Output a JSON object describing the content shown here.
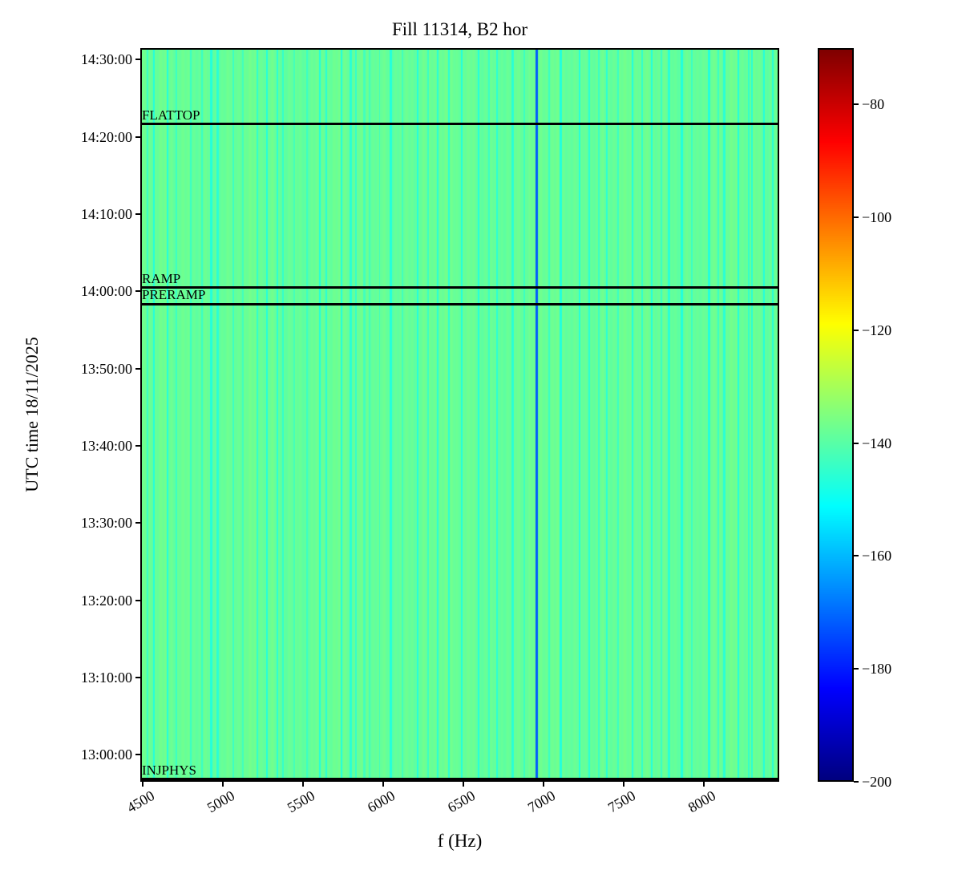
{
  "chart_data": {
    "type": "heatmap",
    "title": "Fill 11314, B2 hor",
    "xlabel": "f (Hz)",
    "ylabel": "UTC time 18/11/2025",
    "colormap": "jet",
    "x_range_hz": [
      4485,
      8470
    ],
    "x_ticks_hz": [
      4500,
      5000,
      5500,
      6000,
      6500,
      7000,
      7500,
      8000
    ],
    "y_ticks": [
      "14:30:00",
      "14:20:00",
      "14:10:00",
      "14:00:00",
      "13:50:00",
      "13:40:00",
      "13:30:00",
      "13:20:00",
      "13:10:00",
      "13:00:00"
    ],
    "time_top": "14:31:30",
    "time_bottom": "12:56:30",
    "value_range_db": [
      -200,
      -70
    ],
    "colorbar_ticks_db": [
      -80,
      -100,
      -120,
      -140,
      -160,
      -180,
      -200
    ],
    "baseline_db": -138,
    "noise_db": 1.2,
    "stripes": {
      "format": "[f_hz, db, width_hz]",
      "values": [
        [
          4520,
          -144,
          10
        ],
        [
          4560,
          -147,
          12
        ],
        [
          4645,
          -147,
          12
        ],
        [
          4700,
          -144,
          10
        ],
        [
          4790,
          -144,
          10
        ],
        [
          4860,
          -144,
          10
        ],
        [
          4920,
          -147,
          12
        ],
        [
          4960,
          -146,
          12
        ],
        [
          5060,
          -144,
          10
        ],
        [
          5120,
          -143,
          10
        ],
        [
          5210,
          -145,
          10
        ],
        [
          5270,
          -147,
          12
        ],
        [
          5335,
          -146,
          12
        ],
        [
          5370,
          -145,
          10
        ],
        [
          5440,
          -143,
          10
        ],
        [
          5520,
          -144,
          10
        ],
        [
          5600,
          -147,
          12
        ],
        [
          5640,
          -146,
          12
        ],
        [
          5735,
          -147,
          12
        ],
        [
          5795,
          -146,
          12
        ],
        [
          5825,
          -145,
          10
        ],
        [
          5880,
          -143,
          14
        ],
        [
          5910,
          -143,
          10
        ],
        [
          5975,
          -144,
          10
        ],
        [
          6045,
          -147,
          12
        ],
        [
          6120,
          -143,
          10
        ],
        [
          6215,
          -147,
          12
        ],
        [
          6280,
          -144,
          10
        ],
        [
          6340,
          -146,
          12
        ],
        [
          6410,
          -146,
          12
        ],
        [
          6490,
          -147,
          12
        ],
        [
          6595,
          -147,
          12
        ],
        [
          6660,
          -144,
          10
        ],
        [
          6710,
          -146,
          12
        ],
        [
          6810,
          -146,
          12
        ],
        [
          6880,
          -144,
          10
        ],
        [
          6960,
          -172,
          14
        ],
        [
          7040,
          -144,
          10
        ],
        [
          7110,
          -147,
          12
        ],
        [
          7230,
          -147,
          12
        ],
        [
          7290,
          -146,
          12
        ],
        [
          7350,
          -144,
          10
        ],
        [
          7400,
          -146,
          12
        ],
        [
          7470,
          -144,
          10
        ],
        [
          7560,
          -147,
          12
        ],
        [
          7620,
          -145,
          10
        ],
        [
          7680,
          -147,
          12
        ],
        [
          7740,
          -144,
          10
        ],
        [
          7790,
          -146,
          12
        ],
        [
          7870,
          -147,
          12
        ],
        [
          7930,
          -144,
          10
        ],
        [
          8040,
          -147,
          12
        ],
        [
          8100,
          -144,
          10
        ],
        [
          8135,
          -146,
          12
        ],
        [
          8225,
          -147,
          12
        ],
        [
          8290,
          -145,
          10
        ],
        [
          8310,
          -146,
          12
        ],
        [
          8385,
          -147,
          12
        ],
        [
          8440,
          -146,
          12
        ]
      ]
    },
    "events": [
      {
        "label": "FLATTOP",
        "time": "14:21:40"
      },
      {
        "label": "RAMP",
        "time": "14:00:30"
      },
      {
        "label": "PRERAMP",
        "time": "13:58:20"
      },
      {
        "label": "INJPHYS",
        "time": "12:56:50"
      }
    ]
  }
}
